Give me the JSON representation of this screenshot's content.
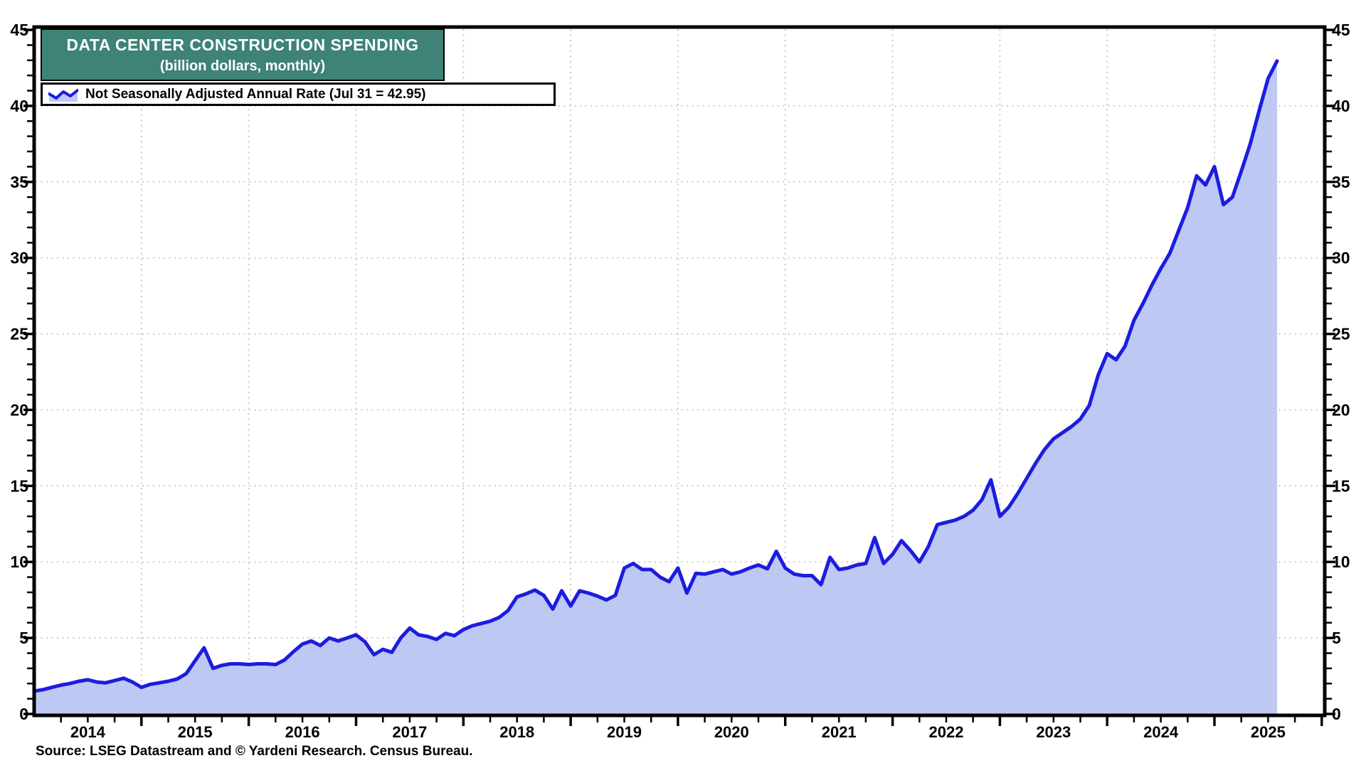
{
  "title": {
    "line1": "DATA CENTER CONSTRUCTION SPENDING",
    "line2": "(billion dollars, monthly)"
  },
  "legend": {
    "label": "Not Seasonally Adjusted Annual Rate (Jul 31 = 42.95)"
  },
  "source": "Source: LSEG Datastream and © Yardeni Research. Census Bureau.",
  "colors": {
    "title_bg": "#3E8375",
    "title_text": "#FFFFFF",
    "line": "#1C1CE0",
    "fill": "#BDC9F3",
    "grid": "#C9C9C9",
    "axis": "#000000",
    "text": "#000000",
    "background": "#FFFFFF"
  },
  "chart_data": {
    "type": "area",
    "title": "DATA CENTER CONSTRUCTION SPENDING",
    "subtitle": "(billion dollars, monthly)",
    "legend_position": "top-left",
    "grid": "dotted",
    "y_axis_sides": "both",
    "ylim": [
      0,
      45
    ],
    "y_ticks": [
      0,
      5,
      10,
      15,
      20,
      25,
      30,
      35,
      40,
      45
    ],
    "y_minor_tick_step": 1,
    "x_year_labels": [
      "2014",
      "2015",
      "2016",
      "2017",
      "2018",
      "2019",
      "2020",
      "2021",
      "2022",
      "2023",
      "2024",
      "2025"
    ],
    "x_minor_tick": "quarterly",
    "series": [
      {
        "name": "Not Seasonally Adjusted Annual Rate",
        "last_point_label": "Jul 31 = 42.95",
        "frequency": "monthly",
        "start_month": "2013-12",
        "end_month": "2025-07",
        "values": [
          1.5,
          1.6,
          1.75,
          1.9,
          2.0,
          2.15,
          2.25,
          2.1,
          2.05,
          2.2,
          2.35,
          2.1,
          1.75,
          1.95,
          2.05,
          2.15,
          2.3,
          2.65,
          3.5,
          4.35,
          3.0,
          3.2,
          3.3,
          3.3,
          3.25,
          3.3,
          3.3,
          3.25,
          3.55,
          4.1,
          4.6,
          4.8,
          4.5,
          5.0,
          4.8,
          5.0,
          5.2,
          4.75,
          3.9,
          4.25,
          4.05,
          5.0,
          5.65,
          5.2,
          5.1,
          4.9,
          5.3,
          5.15,
          5.55,
          5.8,
          5.95,
          6.1,
          6.35,
          6.8,
          7.7,
          7.9,
          8.15,
          7.8,
          6.9,
          8.1,
          7.1,
          8.1,
          7.95,
          7.75,
          7.5,
          7.8,
          9.6,
          9.9,
          9.5,
          9.5,
          9.0,
          8.7,
          9.6,
          7.95,
          9.25,
          9.2,
          9.35,
          9.5,
          9.2,
          9.35,
          9.6,
          9.8,
          9.55,
          10.7,
          9.6,
          9.2,
          9.1,
          9.1,
          8.5,
          10.3,
          9.5,
          9.6,
          9.8,
          9.9,
          11.6,
          9.9,
          10.5,
          11.4,
          10.75,
          10.0,
          11.0,
          12.45,
          12.6,
          12.75,
          13.0,
          13.4,
          14.1,
          15.4,
          13.0,
          13.6,
          14.5,
          15.5,
          16.5,
          17.4,
          18.1,
          18.5,
          18.9,
          19.4,
          20.3,
          22.3,
          23.7,
          23.3,
          24.2,
          25.9,
          27.0,
          28.2,
          29.3,
          30.3,
          31.8,
          33.3,
          35.4,
          34.8,
          36.0,
          33.5,
          34.0,
          35.7,
          37.5,
          39.7,
          41.8,
          42.95
        ]
      }
    ]
  }
}
